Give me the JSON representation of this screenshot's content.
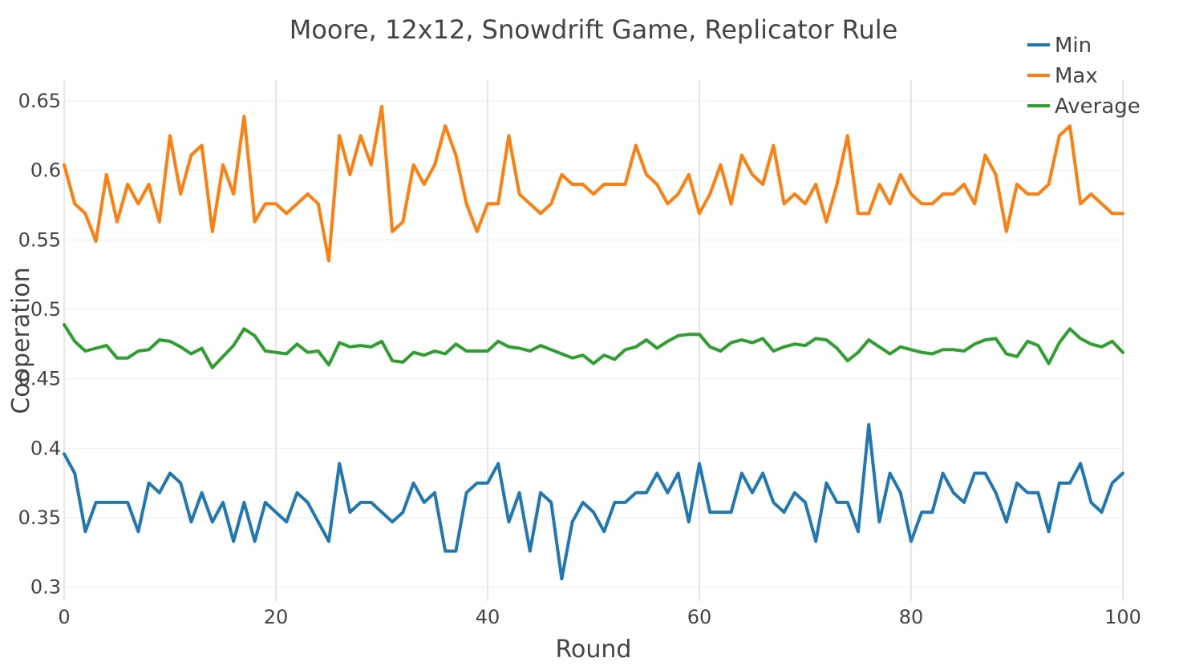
{
  "chart_data": {
    "type": "line",
    "title": "Moore, 12x12, Snowdrift Game, Replicator Rule",
    "xlabel": "Round",
    "ylabel": "Cooperation",
    "xlim": [
      0,
      100
    ],
    "ylim": [
      0.29,
      0.665
    ],
    "xticks": [
      0,
      20,
      40,
      60,
      80,
      100
    ],
    "xtick_labels": [
      "0",
      "20",
      "40",
      "60",
      "80",
      "100"
    ],
    "yticks": [
      0.3,
      0.35,
      0.4,
      0.45,
      0.5,
      0.55,
      0.6,
      0.65
    ],
    "ytick_labels": [
      "0.3",
      "0.35",
      "0.4",
      "0.45",
      "0.5",
      "0.55",
      "0.6",
      "0.65"
    ],
    "grid": true,
    "legend_position": "top-right",
    "series": [
      {
        "name": "Min",
        "color": "#1f77b4",
        "values": [
          0.396,
          0.382,
          0.34,
          0.361,
          0.361,
          0.361,
          0.361,
          0.34,
          0.375,
          0.368,
          0.382,
          0.375,
          0.347,
          0.368,
          0.347,
          0.361,
          0.333,
          0.361,
          0.333,
          0.361,
          0.354,
          0.347,
          0.368,
          0.361,
          0.347,
          0.333,
          0.389,
          0.354,
          0.361,
          0.361,
          0.354,
          0.347,
          0.354,
          0.375,
          0.361,
          0.368,
          0.326,
          0.326,
          0.368,
          0.375,
          0.375,
          0.389,
          0.347,
          0.368,
          0.326,
          0.368,
          0.361,
          0.306,
          0.347,
          0.361,
          0.354,
          0.34,
          0.361,
          0.361,
          0.368,
          0.368,
          0.382,
          0.368,
          0.382,
          0.347,
          0.389,
          0.354,
          0.354,
          0.354,
          0.382,
          0.368,
          0.382,
          0.361,
          0.354,
          0.368,
          0.361,
          0.333,
          0.375,
          0.361,
          0.361,
          0.34,
          0.417,
          0.347,
          0.382,
          0.368,
          0.333,
          0.354,
          0.354,
          0.382,
          0.368,
          0.361,
          0.382,
          0.382,
          0.368,
          0.347,
          0.375,
          0.368,
          0.368,
          0.34,
          0.375,
          0.375,
          0.389,
          0.361,
          0.354,
          0.375,
          0.382
        ]
      },
      {
        "name": "Max",
        "color": "#ff7f0e",
        "values": [
          0.604,
          0.576,
          0.569,
          0.549,
          0.597,
          0.563,
          0.59,
          0.576,
          0.59,
          0.563,
          0.625,
          0.583,
          0.611,
          0.618,
          0.556,
          0.604,
          0.583,
          0.639,
          0.563,
          0.576,
          0.576,
          0.569,
          0.576,
          0.583,
          0.576,
          0.535,
          0.625,
          0.597,
          0.625,
          0.604,
          0.646,
          0.556,
          0.563,
          0.604,
          0.59,
          0.604,
          0.632,
          0.611,
          0.576,
          0.556,
          0.576,
          0.576,
          0.625,
          0.583,
          0.576,
          0.569,
          0.576,
          0.597,
          0.59,
          0.59,
          0.583,
          0.59,
          0.59,
          0.59,
          0.618,
          0.597,
          0.59,
          0.576,
          0.583,
          0.597,
          0.569,
          0.583,
          0.604,
          0.576,
          0.611,
          0.597,
          0.59,
          0.618,
          0.576,
          0.583,
          0.576,
          0.59,
          0.563,
          0.59,
          0.625,
          0.569,
          0.569,
          0.59,
          0.576,
          0.597,
          0.583,
          0.576,
          0.576,
          0.583,
          0.583,
          0.59,
          0.576,
          0.611,
          0.597,
          0.556,
          0.59,
          0.583,
          0.583,
          0.59,
          0.625,
          0.632,
          0.576,
          0.583,
          0.576,
          0.569,
          0.569
        ]
      },
      {
        "name": "Average",
        "color": "#2ca02c",
        "values": [
          0.489,
          0.477,
          0.47,
          0.472,
          0.474,
          0.465,
          0.465,
          0.47,
          0.471,
          0.478,
          0.477,
          0.473,
          0.468,
          0.472,
          0.458,
          0.466,
          0.474,
          0.486,
          0.481,
          0.47,
          0.469,
          0.468,
          0.475,
          0.469,
          0.47,
          0.46,
          0.476,
          0.473,
          0.474,
          0.473,
          0.477,
          0.463,
          0.462,
          0.469,
          0.467,
          0.47,
          0.468,
          0.475,
          0.47,
          0.47,
          0.47,
          0.477,
          0.473,
          0.472,
          0.47,
          0.474,
          0.471,
          0.468,
          0.465,
          0.467,
          0.461,
          0.467,
          0.464,
          0.471,
          0.473,
          0.478,
          0.472,
          0.477,
          0.481,
          0.482,
          0.482,
          0.473,
          0.47,
          0.476,
          0.478,
          0.476,
          0.479,
          0.47,
          0.473,
          0.475,
          0.474,
          0.479,
          0.478,
          0.472,
          0.463,
          0.469,
          0.478,
          0.473,
          0.468,
          0.473,
          0.471,
          0.469,
          0.468,
          0.471,
          0.471,
          0.47,
          0.475,
          0.478,
          0.479,
          0.468,
          0.466,
          0.477,
          0.474,
          0.461,
          0.476,
          0.486,
          0.479,
          0.475,
          0.473,
          0.477,
          0.469
        ]
      }
    ]
  }
}
